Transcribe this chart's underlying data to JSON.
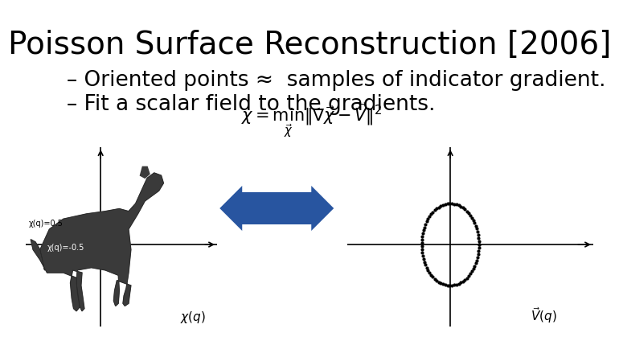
{
  "title": "Poisson Surface Reconstruction [2006]",
  "bullet1": "– Oriented points ≈  samples of indicator gradient.",
  "bullet2": "– Fit a scalar field to the gradients.",
  "bg_color": "#ffffff",
  "title_fontsize": 28,
  "bullet_fontsize": 19,
  "title_color": "#000000",
  "bullet_color": "#000000",
  "arrow_color": "#2855a0",
  "chi_pos05": "χ(q)=0.5",
  "chi_neg05": "χ(q)=-0.5"
}
